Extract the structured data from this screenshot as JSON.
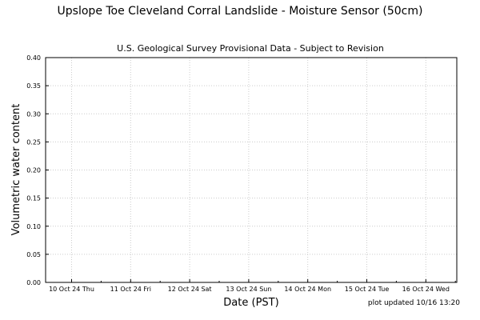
{
  "figure": {
    "title": "Upslope Toe Cleveland Corral Landslide - Moisture Sensor (50cm)",
    "subtitle": "U.S. Geological Survey Provisional Data - Subject to Revision",
    "footer_note": "plot updated 10/16 13:20"
  },
  "chart_data": {
    "type": "line",
    "title": "U.S. Geological Survey Provisional Data - Subject to Revision",
    "xlabel": "Date (PST)",
    "ylabel": "Volumetric water content",
    "ylim": [
      0,
      0.4
    ],
    "yticks": [
      "0.00",
      "0.05",
      "0.10",
      "0.15",
      "0.20",
      "0.25",
      "0.30",
      "0.35",
      "0.40"
    ],
    "xticks": [
      "10 Oct 24 Thu",
      "11 Oct 24 Fri",
      "12 Oct 24 Sat",
      "13 Oct 24 Sun",
      "14 Oct 24 Mon",
      "15 Oct 24 Tue",
      "16 Oct 24 Wed"
    ],
    "grid": true,
    "series": []
  }
}
